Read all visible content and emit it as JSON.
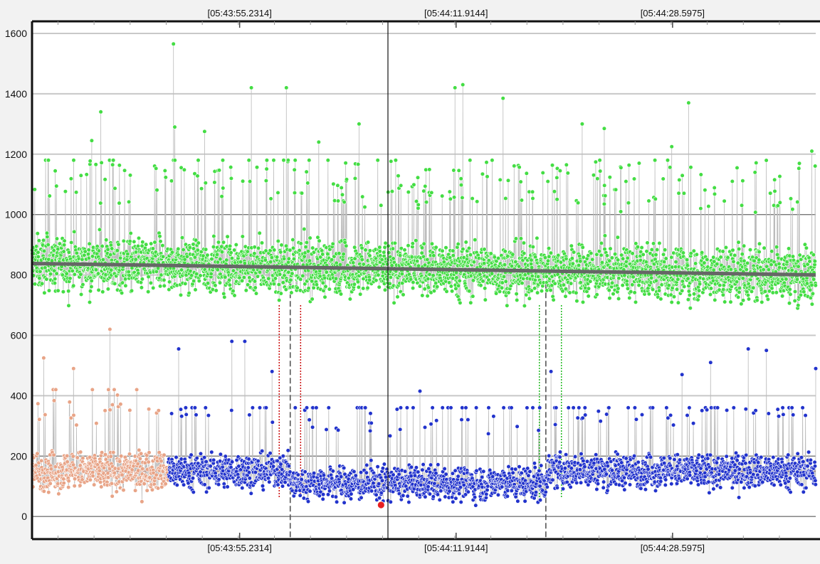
{
  "chart_data": {
    "type": "scatter",
    "y_ticks": [
      "0",
      "200",
      "400",
      "600",
      "800",
      "1000",
      "1200",
      "1400",
      "1600"
    ],
    "y_tick_values": [
      0,
      200,
      400,
      600,
      800,
      1000,
      1200,
      1400,
      1600
    ],
    "ylim": [
      -75,
      1640
    ],
    "x_ticks_top": [
      "[05:43:55.2314]",
      "[05:44:11.9144]",
      "[05:44:28.5975]"
    ],
    "x_ticks_bottom": [
      "[05:43:55.2314]",
      "[05:44:11.9144]",
      "[05:44:28.5975]"
    ],
    "xlim_seconds": [
      -16.0,
      44.4
    ],
    "x_tick_seconds": [
      0.0,
      16.683,
      33.3661
    ],
    "cursor_line_seconds": 11.43,
    "grid": true,
    "series": [
      {
        "color": "#44dd44",
        "range": [
          -16.0,
          44.4
        ],
        "trend": [
          [
            -16.0,
            838
          ],
          [
            44.4,
            800
          ]
        ],
        "typical_range": [
          600,
          1050
        ],
        "max_spikes": [
          [
            -10.7,
            1340
          ],
          [
            -11.4,
            1245
          ],
          [
            -5.1,
            1565
          ],
          [
            -5.0,
            1290
          ],
          [
            -2.7,
            1275
          ],
          [
            0.9,
            1420
          ],
          [
            3.6,
            1420
          ],
          [
            6.1,
            1240
          ],
          [
            9.2,
            1300
          ],
          [
            16.6,
            1420
          ],
          [
            17.2,
            1430
          ],
          [
            20.3,
            1385
          ],
          [
            26.4,
            1300
          ],
          [
            28.1,
            1285
          ],
          [
            33.3,
            1225
          ],
          [
            34.6,
            1370
          ],
          [
            44.1,
            1210
          ]
        ]
      },
      {
        "color": "#e8a487",
        "range": [
          -16.0,
          -5.5
        ],
        "level": 150,
        "typical_range": [
          0,
          420
        ],
        "max_spikes": [
          [
            -10.0,
            620
          ],
          [
            -15.1,
            525
          ],
          [
            -12.8,
            490
          ],
          [
            -9.8,
            370
          ]
        ]
      },
      {
        "color": "#2233cc",
        "range": [
          -5.5,
          44.4
        ],
        "levels": [
          [
            -5.5,
            3.9,
            150
          ],
          [
            3.9,
            23.6,
            110
          ],
          [
            23.6,
            44.4,
            150
          ]
        ],
        "typical_range": [
          0,
          360
        ],
        "max_spikes": [
          [
            -0.6,
            580
          ],
          [
            0.4,
            580
          ],
          [
            -4.7,
            555
          ],
          [
            2.5,
            480
          ],
          [
            13.9,
            415
          ],
          [
            24.0,
            480
          ],
          [
            34.1,
            470
          ],
          [
            34.5,
            335
          ],
          [
            36.3,
            510
          ],
          [
            39.2,
            555
          ],
          [
            40.6,
            550
          ],
          [
            44.4,
            490
          ]
        ]
      }
    ],
    "highlight_point": {
      "x": 10.9,
      "y": 38,
      "color": "#e82020"
    },
    "markers": [
      {
        "x": 3.05,
        "color": "#cc1111",
        "style": "dotted",
        "y_top": 700
      },
      {
        "x": 4.7,
        "color": "#cc1111",
        "style": "dotted",
        "y_top": 700
      },
      {
        "x": 3.9,
        "color": "#555555",
        "style": "dashed",
        "y_top": 770
      },
      {
        "x": 23.1,
        "color": "#22bb22",
        "style": "dotted",
        "y_top": 700
      },
      {
        "x": 24.8,
        "color": "#22bb22",
        "style": "dotted",
        "y_top": 700
      },
      {
        "x": 23.6,
        "color": "#555555",
        "style": "dashed",
        "y_top": 770
      }
    ]
  }
}
